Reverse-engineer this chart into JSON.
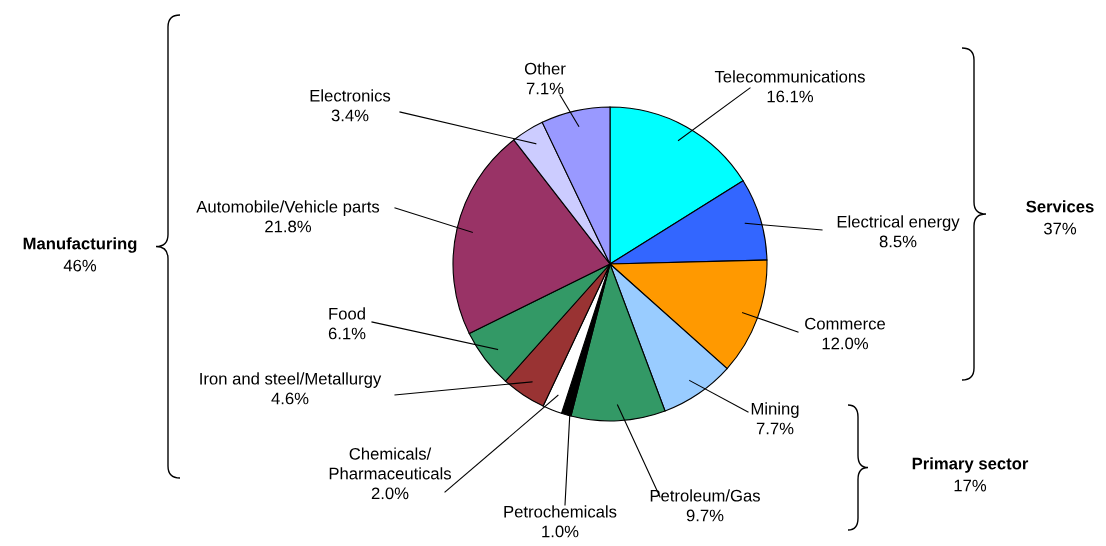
{
  "chart_data": {
    "type": "pie",
    "categories": [
      "Telecommunications",
      "Electrical energy",
      "Commerce",
      "Mining",
      "Petroleum/Gas",
      "Petrochemicals",
      "Chemicals/\nPharmaceuticals",
      "Iron and steel/Metallurgy",
      "Food",
      "Automobile/Vehicle parts",
      "Electronics",
      "Other"
    ],
    "values": [
      16.1,
      8.5,
      12.0,
      7.7,
      9.7,
      1.0,
      2.0,
      4.6,
      6.1,
      21.8,
      3.4,
      7.1
    ],
    "value_labels": [
      "16.1%",
      "8.5%",
      "12.0%",
      "7.7%",
      "9.7%",
      "1.0%",
      "2.0%",
      "4.6%",
      "6.1%",
      "21.8%",
      "3.4%",
      "7.1%"
    ],
    "colors": [
      "#00ffff",
      "#3366ff",
      "#ff9900",
      "#99ccff",
      "#339966",
      "#000000",
      "#ffffff",
      "#993333",
      "#339966",
      "#993366",
      "#ccccff",
      "#9999ff"
    ],
    "annotations": [
      "Manufacturing",
      "46%",
      "Services",
      "37%",
      "Primary sector",
      "17%"
    ]
  }
}
